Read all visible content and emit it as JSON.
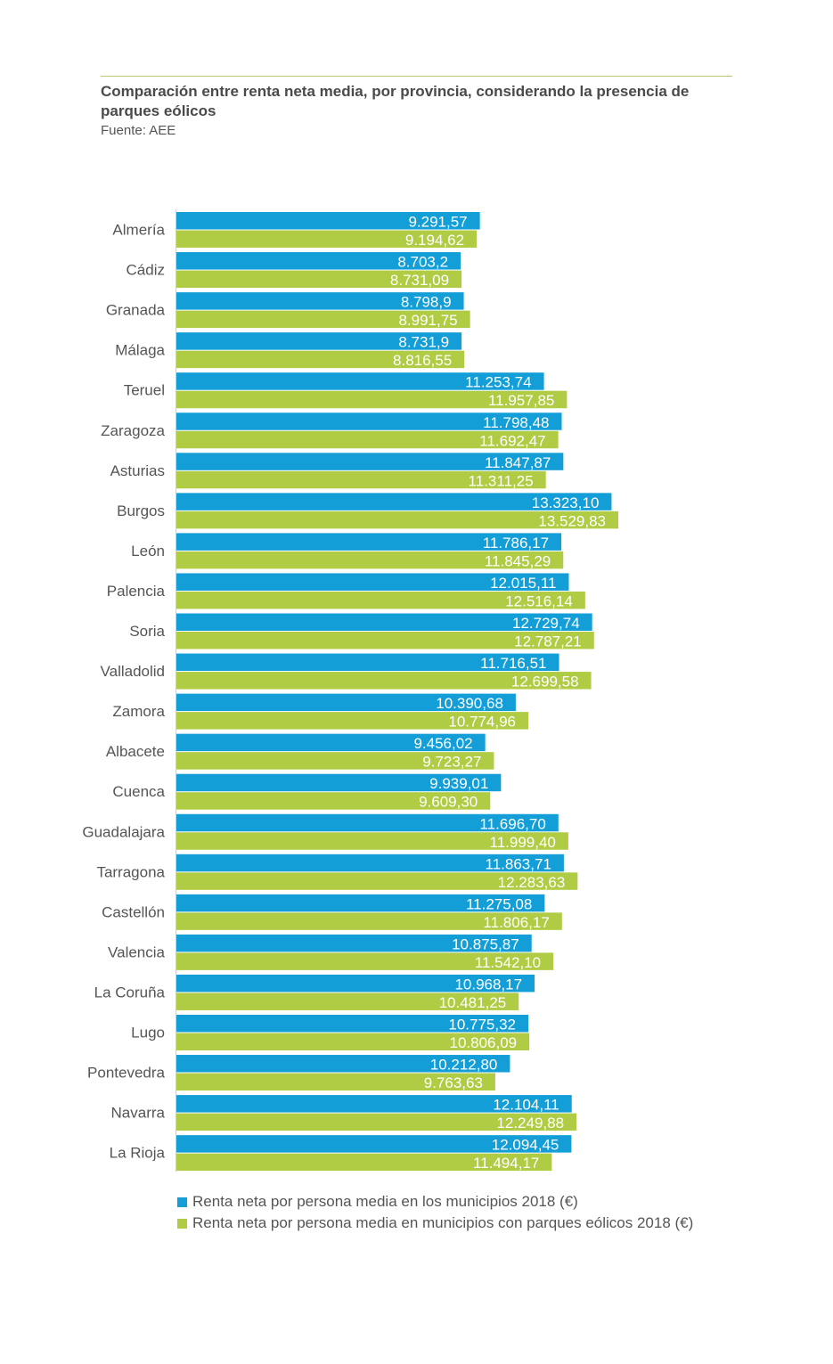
{
  "header": {
    "title": "Comparación entre renta neta media, por provincia, considerando la presencia de parques eólicos",
    "source": "Fuente: AEE"
  },
  "chart_data": {
    "type": "bar",
    "orientation": "horizontal",
    "title": "Comparación entre renta neta media, por provincia, considerando la presencia de parques eólicos",
    "subtitle": "Fuente: AEE",
    "xlim": [
      0,
      13600
    ],
    "grid": false,
    "legend_position": "bottom",
    "categories": [
      "Almería",
      "Cádiz",
      "Granada",
      "Málaga",
      "Teruel",
      "Zaragoza",
      "Asturias",
      "Burgos",
      "León",
      "Palencia",
      "Soria",
      "Valladolid",
      "Zamora",
      "Albacete",
      "Cuenca",
      "Guadalajara",
      "Tarragona",
      "Castellón",
      "Valencia",
      "La Coruña",
      "Lugo",
      "Pontevedra",
      "Navarra",
      "La Rioja"
    ],
    "series": [
      {
        "name": "Renta neta por persona media en los municipios 2018 (€)",
        "color": "#139ed8",
        "values": [
          9291.57,
          8703.2,
          8798.9,
          8731.9,
          11253.74,
          11798.48,
          11847.87,
          13323.1,
          11786.17,
          12015.11,
          12729.74,
          11716.51,
          10390.68,
          9456.02,
          9939.01,
          11696.7,
          11863.71,
          11275.08,
          10875.87,
          10968.17,
          10775.32,
          10212.8,
          12104.11,
          12094.45
        ],
        "labels": [
          "9.291,57",
          "8.703,2",
          "8.798,9",
          "8.731,9",
          "11.253,74",
          "11.798,48",
          "11.847,87",
          "13.323,10",
          "11.786,17",
          "12.015,11",
          "12.729,74",
          "11.716,51",
          "10.390,68",
          "9.456,02",
          "9.939,01",
          "11.696,70",
          "11.863,71",
          "11.275,08",
          "10.875,87",
          "10.968,17",
          "10.775,32",
          "10.212,80",
          "12.104,11",
          "12.094,45"
        ]
      },
      {
        "name": "Renta neta por persona media en municipios con parques eólicos 2018 (€)",
        "color": "#b0cc44",
        "values": [
          9194.62,
          8731.09,
          8991.75,
          8816.55,
          11957.85,
          11692.47,
          11311.25,
          13529.83,
          11845.29,
          12516.14,
          12787.21,
          12699.58,
          10774.96,
          9723.27,
          9609.3,
          11999.4,
          12283.63,
          11806.17,
          11542.1,
          10481.25,
          10806.09,
          9763.63,
          12249.88,
          11494.17
        ],
        "labels": [
          "9.194,62",
          "8.731,09",
          "8.991,75",
          "8.816,55",
          "11.957,85",
          "11.692,47",
          "11.311,25",
          "13.529,83",
          "11.845,29",
          "12.516,14",
          "12.787,21",
          "12.699,58",
          "10.774,96",
          "9.723,27",
          "9.609,30",
          "11.999,40",
          "12.283,63",
          "11.806,17",
          "11.542,10",
          "10.481,25",
          "10.806,09",
          "9.763,63",
          "12.249,88",
          "11.494,17"
        ]
      }
    ]
  }
}
